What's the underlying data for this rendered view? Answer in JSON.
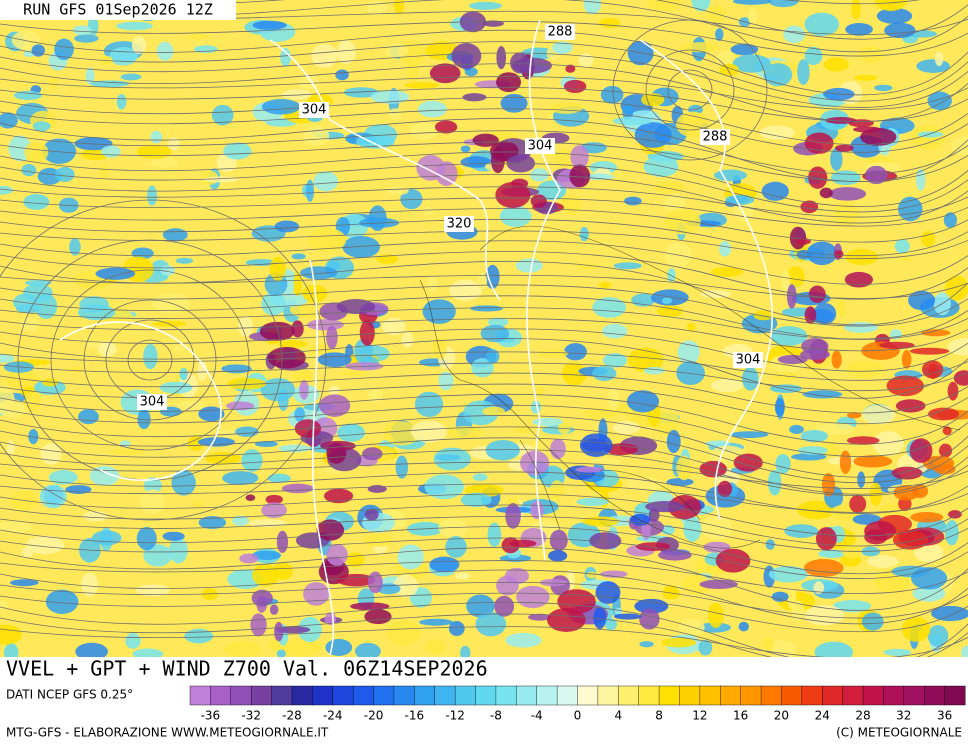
{
  "header": {
    "run": "RUN GFS 01Sep2026 12Z"
  },
  "contour_labels": [
    "288",
    "304",
    "304",
    "288",
    "320",
    "304",
    "304"
  ],
  "title": "VVEL + GPT + WIND Z700 Val. 06Z14SEP2026",
  "source": "DATI NCEP GFS 0.25°",
  "colorbar": {
    "colors": [
      "#c080d8",
      "#a860c8",
      "#9050b8",
      "#7840a0",
      "#503c9c",
      "#2828a0",
      "#1e32c8",
      "#1e46dc",
      "#1e5aeb",
      "#2070f0",
      "#2888f0",
      "#30a0f0",
      "#40b4f0",
      "#50c8f0",
      "#60d8f0",
      "#78e4f0",
      "#98ecf0",
      "#b8f2f0",
      "#d8f8f0",
      "#fffacd",
      "#fff5a0",
      "#fff070",
      "#ffe840",
      "#ffe000",
      "#ffd000",
      "#ffc000",
      "#ffaa00",
      "#ff9600",
      "#ff7800",
      "#f85a00",
      "#f03c14",
      "#e02828",
      "#d01e3c",
      "#c0144a",
      "#b01058",
      "#a01060",
      "#900c58",
      "#800850"
    ],
    "ticks": [
      "-36",
      "-32",
      "-28",
      "-24",
      "-20",
      "-16",
      "-12",
      "-8",
      "-4",
      "0",
      "4",
      "8",
      "12",
      "16",
      "20",
      "24",
      "28",
      "32",
      "36"
    ]
  },
  "footer": {
    "left": "MTG-GFS - ELABORAZIONE WWW.METEOGIORNALE.IT",
    "right": "(C) METEOGIORNALE"
  }
}
